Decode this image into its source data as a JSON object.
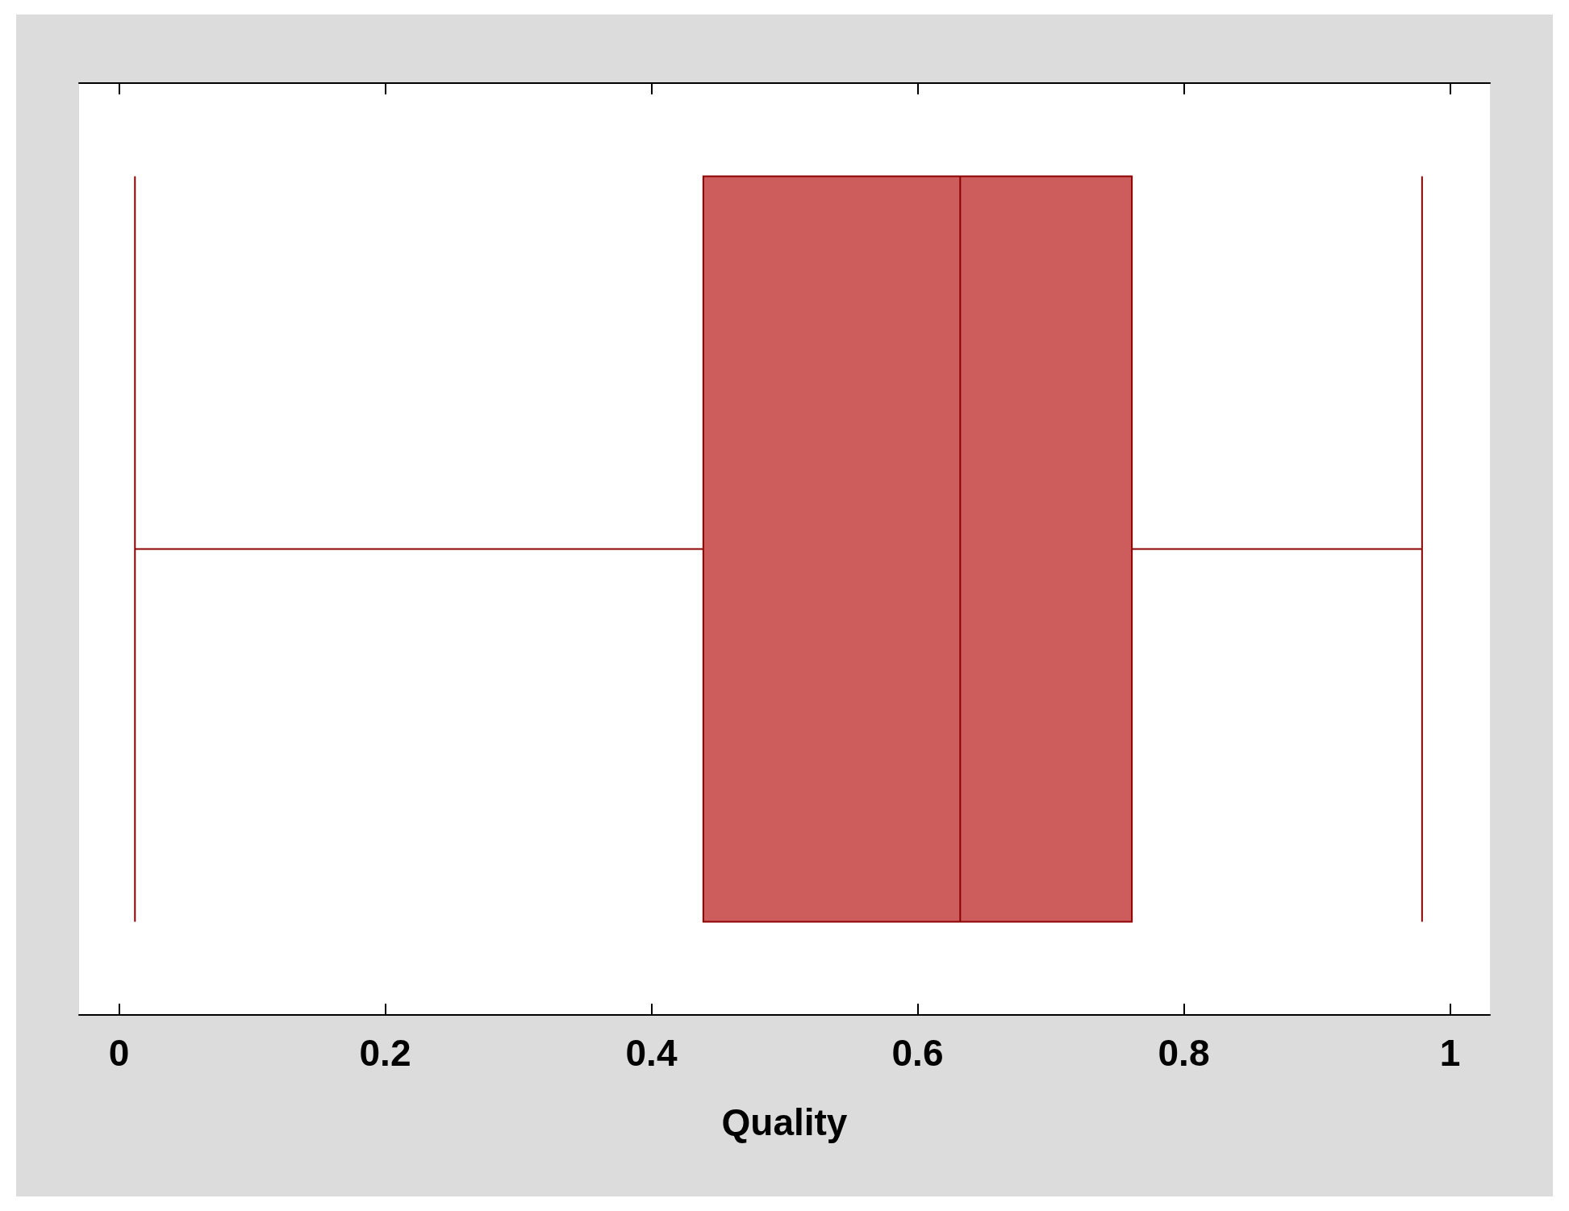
{
  "chart_data": {
    "type": "box",
    "orientation": "horizontal",
    "xlabel": "Quality",
    "categories": [
      null
    ],
    "boxes": [
      {
        "low": 0.012,
        "q1": 0.439,
        "median": 0.632,
        "q3": 0.761,
        "high": 0.979
      }
    ],
    "color": "#cd5c5c",
    "xlim": [
      -0.03,
      1.03
    ],
    "xticks": [
      0,
      0.2,
      0.4,
      0.6,
      0.8,
      1
    ],
    "grid": false
  }
}
